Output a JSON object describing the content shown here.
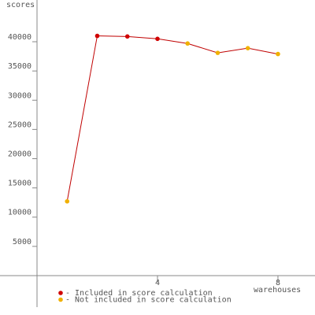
{
  "chart_data": {
    "type": "line",
    "y_label": "scores",
    "x_label": "warehouses",
    "x": [
      1,
      2,
      3,
      4,
      5,
      6,
      7,
      8
    ],
    "values": [
      12700,
      41000,
      40900,
      40500,
      39700,
      38100,
      38900,
      37900
    ],
    "line_color": "#c00000",
    "point_colors": [
      "#f0b000",
      "#d00000",
      "#d00000",
      "#d00000",
      "#f0b000",
      "#f0b000",
      "#f0b000",
      "#f0b000"
    ],
    "xlim": [
      0,
      9.23
    ],
    "ylim": [
      -5390,
      47140
    ],
    "xticks": [
      4,
      8
    ],
    "yticks": [
      5000,
      10000,
      15000,
      20000,
      25000,
      30000,
      35000,
      40000
    ],
    "legend": [
      {
        "color": "#d00000",
        "label": "- Included in score calculation"
      },
      {
        "color": "#f0b000",
        "label": "- Not included in score calculation"
      }
    ]
  }
}
